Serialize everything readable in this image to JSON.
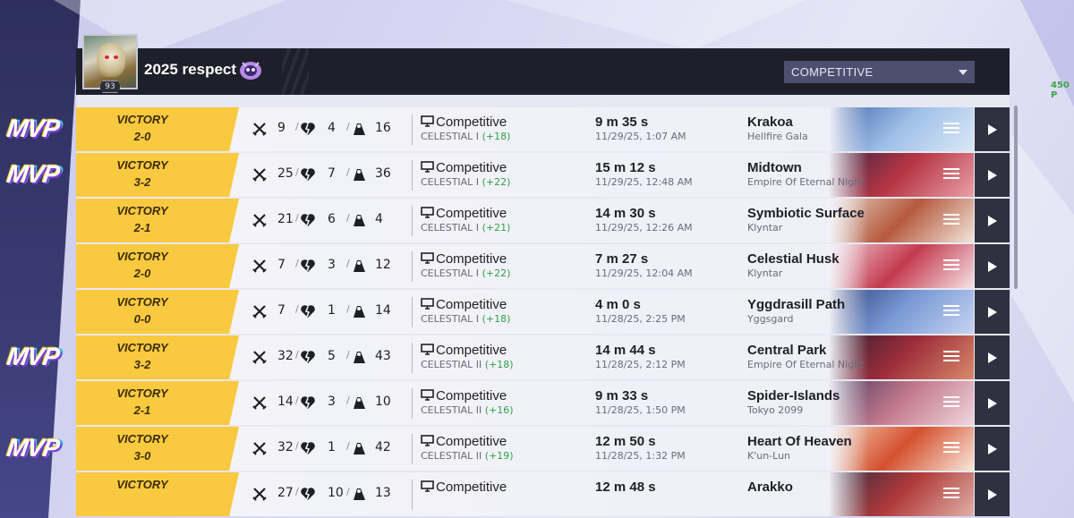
{
  "header": {
    "player_name": "2025 respect",
    "level": "93",
    "mode_select": "COMPETITIVE"
  },
  "side_text": "450 P",
  "matches": [
    {
      "result": "VICTORY",
      "score": "2-0",
      "kills": "9",
      "deaths": "4",
      "assists": "16",
      "mode": "Competitive",
      "rank": "CELESTIAL I",
      "gain": "(+18)",
      "duration": "9 m 35 s",
      "date": "11/29/25, 1:07 AM",
      "map": "Krakoa",
      "region": "Hellfire Gala",
      "mvp": "MVP",
      "map_colors": [
        "#3e63a8",
        "#9fc0e8",
        "#dbe8f6"
      ]
    },
    {
      "result": "VICTORY",
      "score": "3-2",
      "kills": "25",
      "deaths": "7",
      "assists": "36",
      "mode": "Competitive",
      "rank": "CELESTIAL I",
      "gain": "(+22)",
      "duration": "15 m 12 s",
      "date": "11/29/25, 12:48 AM",
      "map": "Midtown",
      "region": "Empire Of Eternal Night",
      "mvp": "MVP",
      "map_colors": [
        "#3b2340",
        "#b73645",
        "#e8a0a8"
      ]
    },
    {
      "result": "VICTORY",
      "score": "2-1",
      "kills": "21",
      "deaths": "6",
      "assists": "4",
      "mode": "Competitive",
      "rank": "CELESTIAL I",
      "gain": "(+21)",
      "duration": "14 m 30 s",
      "date": "11/29/25, 12:26 AM",
      "map": "Symbiotic Surface",
      "region": "Klyntar",
      "mvp": "",
      "map_colors": [
        "#e6d5c8",
        "#b55a3e",
        "#f2e6dc"
      ]
    },
    {
      "result": "VICTORY",
      "score": "2-0",
      "kills": "7",
      "deaths": "3",
      "assists": "12",
      "mode": "Competitive",
      "rank": "CELESTIAL I",
      "gain": "(+22)",
      "duration": "7 m 27 s",
      "date": "11/29/25, 12:04 AM",
      "map": "Celestial Husk",
      "region": "Klyntar",
      "mvp": "",
      "map_colors": [
        "#f0d0d8",
        "#c43a4e",
        "#f6e2e6"
      ]
    },
    {
      "result": "VICTORY",
      "score": "0-0",
      "kills": "7",
      "deaths": "1",
      "assists": "14",
      "mode": "Competitive",
      "rank": "CELESTIAL I",
      "gain": "(+18)",
      "duration": "4 m 0 s",
      "date": "11/28/25, 2:25 PM",
      "map": "Yggdrasill Path",
      "region": "Yggsgard",
      "mvp": "",
      "map_colors": [
        "#2c3f7a",
        "#7a9ad6",
        "#c6d3f0"
      ]
    },
    {
      "result": "VICTORY",
      "score": "3-2",
      "kills": "32",
      "deaths": "5",
      "assists": "43",
      "mode": "Competitive",
      "rank": "CELESTIAL II",
      "gain": "(+18)",
      "duration": "14 m 44 s",
      "date": "11/28/25, 2:12 PM",
      "map": "Central Park",
      "region": "Empire Of Eternal Night",
      "mvp": "MVP",
      "map_colors": [
        "#2a1c2e",
        "#9e2e3c",
        "#d88a6a"
      ]
    },
    {
      "result": "VICTORY",
      "score": "2-1",
      "kills": "14",
      "deaths": "3",
      "assists": "10",
      "mode": "Competitive",
      "rank": "CELESTIAL II",
      "gain": "(+16)",
      "duration": "9 m 33 s",
      "date": "11/28/25, 1:50 PM",
      "map": "Spider-Islands",
      "region": "Tokyo 2099",
      "mvp": "",
      "map_colors": [
        "#4a3a5e",
        "#c47a8e",
        "#efd6de"
      ]
    },
    {
      "result": "VICTORY",
      "score": "3-0",
      "kills": "32",
      "deaths": "1",
      "assists": "42",
      "mode": "Competitive",
      "rank": "CELESTIAL II",
      "gain": "(+19)",
      "duration": "12 m 50 s",
      "date": "11/28/25, 1:32 PM",
      "map": "Heart Of Heaven",
      "region": "K'un-Lun",
      "mvp": "MVP",
      "map_colors": [
        "#f2d2b8",
        "#d4502e",
        "#f8e8dc"
      ]
    },
    {
      "result": "VICTORY",
      "score": "",
      "kills": "27",
      "deaths": "10",
      "assists": "13",
      "mode": "Competitive",
      "rank": "",
      "gain": "",
      "duration": "12 m 48 s",
      "date": "",
      "map": "Arakko",
      "region": "",
      "mvp": "",
      "map_colors": [
        "#2c2a40",
        "#b03a3a",
        "#e0b0a8"
      ]
    }
  ]
}
